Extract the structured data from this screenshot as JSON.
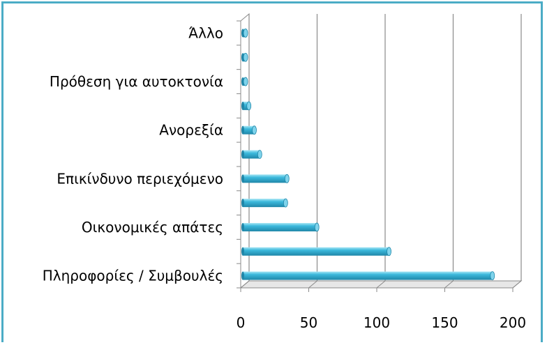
{
  "chart_data": {
    "type": "bar",
    "orientation": "horizontal",
    "categories": [
      "Πληροφορίες / Συμβουλές",
      "",
      "Οικονομικές απάτες",
      "",
      "Επικίνδυνο περιεχόμενο",
      "",
      "Ανορεξία",
      "",
      "Πρόθεση για αυτοκτονία",
      "",
      "Άλλο"
    ],
    "values": [
      185,
      109,
      56,
      33,
      34,
      14,
      10,
      6,
      0,
      0,
      0
    ],
    "xlim": [
      0,
      200
    ],
    "xticks": [
      "0",
      "50",
      "100",
      "150",
      "200"
    ],
    "grid": true,
    "legend": "none",
    "colors": {
      "bar": "#3cb9dc",
      "bar_dark": "#1f86a8",
      "bar_light": "#a8e6f5",
      "frame": "#4bacc6",
      "wall": "#8a8a8a"
    }
  }
}
